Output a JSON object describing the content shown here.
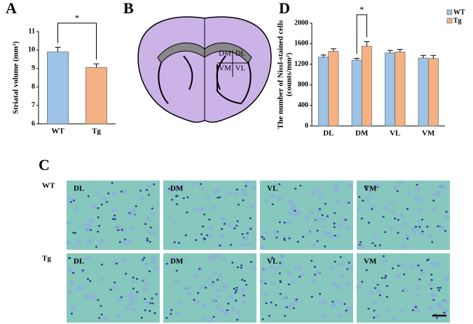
{
  "chart_data": [
    {
      "type": "bar",
      "panel": "A",
      "y_label": [
        "Striatal volume (mm³)"
      ],
      "categories": [
        "WT",
        "Tg"
      ],
      "values": [
        9.9,
        9.05
      ],
      "errors": [
        0.25,
        0.2
      ],
      "colors": [
        "#9dc3e6",
        "#f4b183"
      ],
      "ylim": [
        6,
        11
      ],
      "yticks": [
        6,
        7,
        8,
        9,
        10,
        11
      ],
      "significance": {
        "label": "*"
      }
    },
    {
      "type": "bar",
      "panel": "D",
      "y_label": [
        "The number of Nissl-stained cells",
        "(counts/mm²)"
      ],
      "categories": [
        "DL",
        "DM",
        "VL",
        "VM"
      ],
      "series": [
        {
          "name": "WT",
          "color": "#9dc3e6",
          "values": [
            1340,
            1280,
            1420,
            1320
          ],
          "errors": [
            40,
            35,
            50,
            50
          ]
        },
        {
          "name": "Tg",
          "color": "#f4b183",
          "values": [
            1450,
            1550,
            1440,
            1310
          ],
          "errors": [
            50,
            90,
            50,
            60
          ]
        }
      ],
      "ylim": [
        0,
        2000
      ],
      "yticks": [
        0,
        400,
        800,
        1200,
        1600,
        2000
      ],
      "legend": "upper right",
      "significance": {
        "label": "*",
        "category": 1
      }
    }
  ],
  "diagram": {
    "panel": "B",
    "regions": [
      "DM",
      "DL",
      "VM",
      "VL"
    ]
  },
  "micrographs": {
    "panel": "C",
    "rows": [
      "WT",
      "Tg"
    ],
    "regions": [
      "DL",
      "DM",
      "VL",
      "VM"
    ]
  }
}
